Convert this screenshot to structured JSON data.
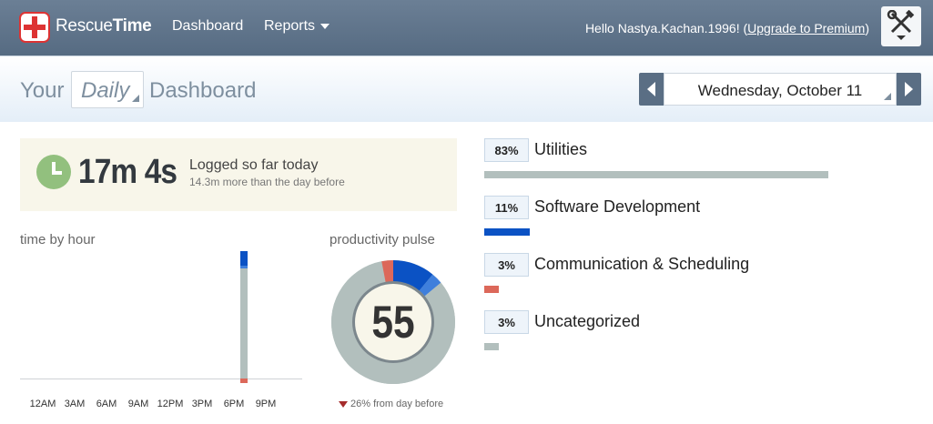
{
  "header": {
    "brand_light": "Rescue",
    "brand_bold": "Time",
    "nav": [
      "Dashboard",
      "Reports"
    ],
    "greeting": "Hello Nastya.Kachan.1996! (",
    "upgrade_label": "Upgrade to Premium",
    "greeting_end": ")",
    "tools_icon": "tools-icon"
  },
  "titlebar": {
    "your": "Your",
    "period": "Daily",
    "dashboard": "Dashboard",
    "date": "Wednesday, October 11"
  },
  "logged": {
    "time": "17m 4s",
    "label": "Logged so far today",
    "sub": "14.3m more than the day before"
  },
  "time_by_hour": {
    "title": "time by hour",
    "hour_labels": [
      "12AM",
      "3AM",
      "6AM",
      "9AM",
      "12PM",
      "3PM",
      "6PM",
      "9PM"
    ]
  },
  "productivity_pulse": {
    "title": "productivity pulse",
    "score": "55",
    "change": "26% from day before",
    "segments": [
      {
        "name": "very-productive",
        "fraction": 0.11,
        "color": "#0b52c4"
      },
      {
        "name": "productive",
        "fraction": 0.03,
        "color": "#3f7fdc"
      },
      {
        "name": "neutral",
        "fraction": 0.83,
        "color": "#b2bfbd"
      },
      {
        "name": "distracting",
        "fraction": 0.03,
        "color": "#dc685a"
      }
    ]
  },
  "categories": [
    {
      "pct": "83%",
      "name": "Utilities",
      "fraction": 0.83,
      "color": "#b2bfbd"
    },
    {
      "pct": "11%",
      "name": "Software Development",
      "fraction": 0.11,
      "color": "#0b52c4"
    },
    {
      "pct": "3%",
      "name": "Communication & Scheduling",
      "fraction": 0.03,
      "color": "#dc685a"
    },
    {
      "pct": "3%",
      "name": "Uncategorized",
      "fraction": 0.03,
      "color": "#b2bfbd"
    }
  ]
}
